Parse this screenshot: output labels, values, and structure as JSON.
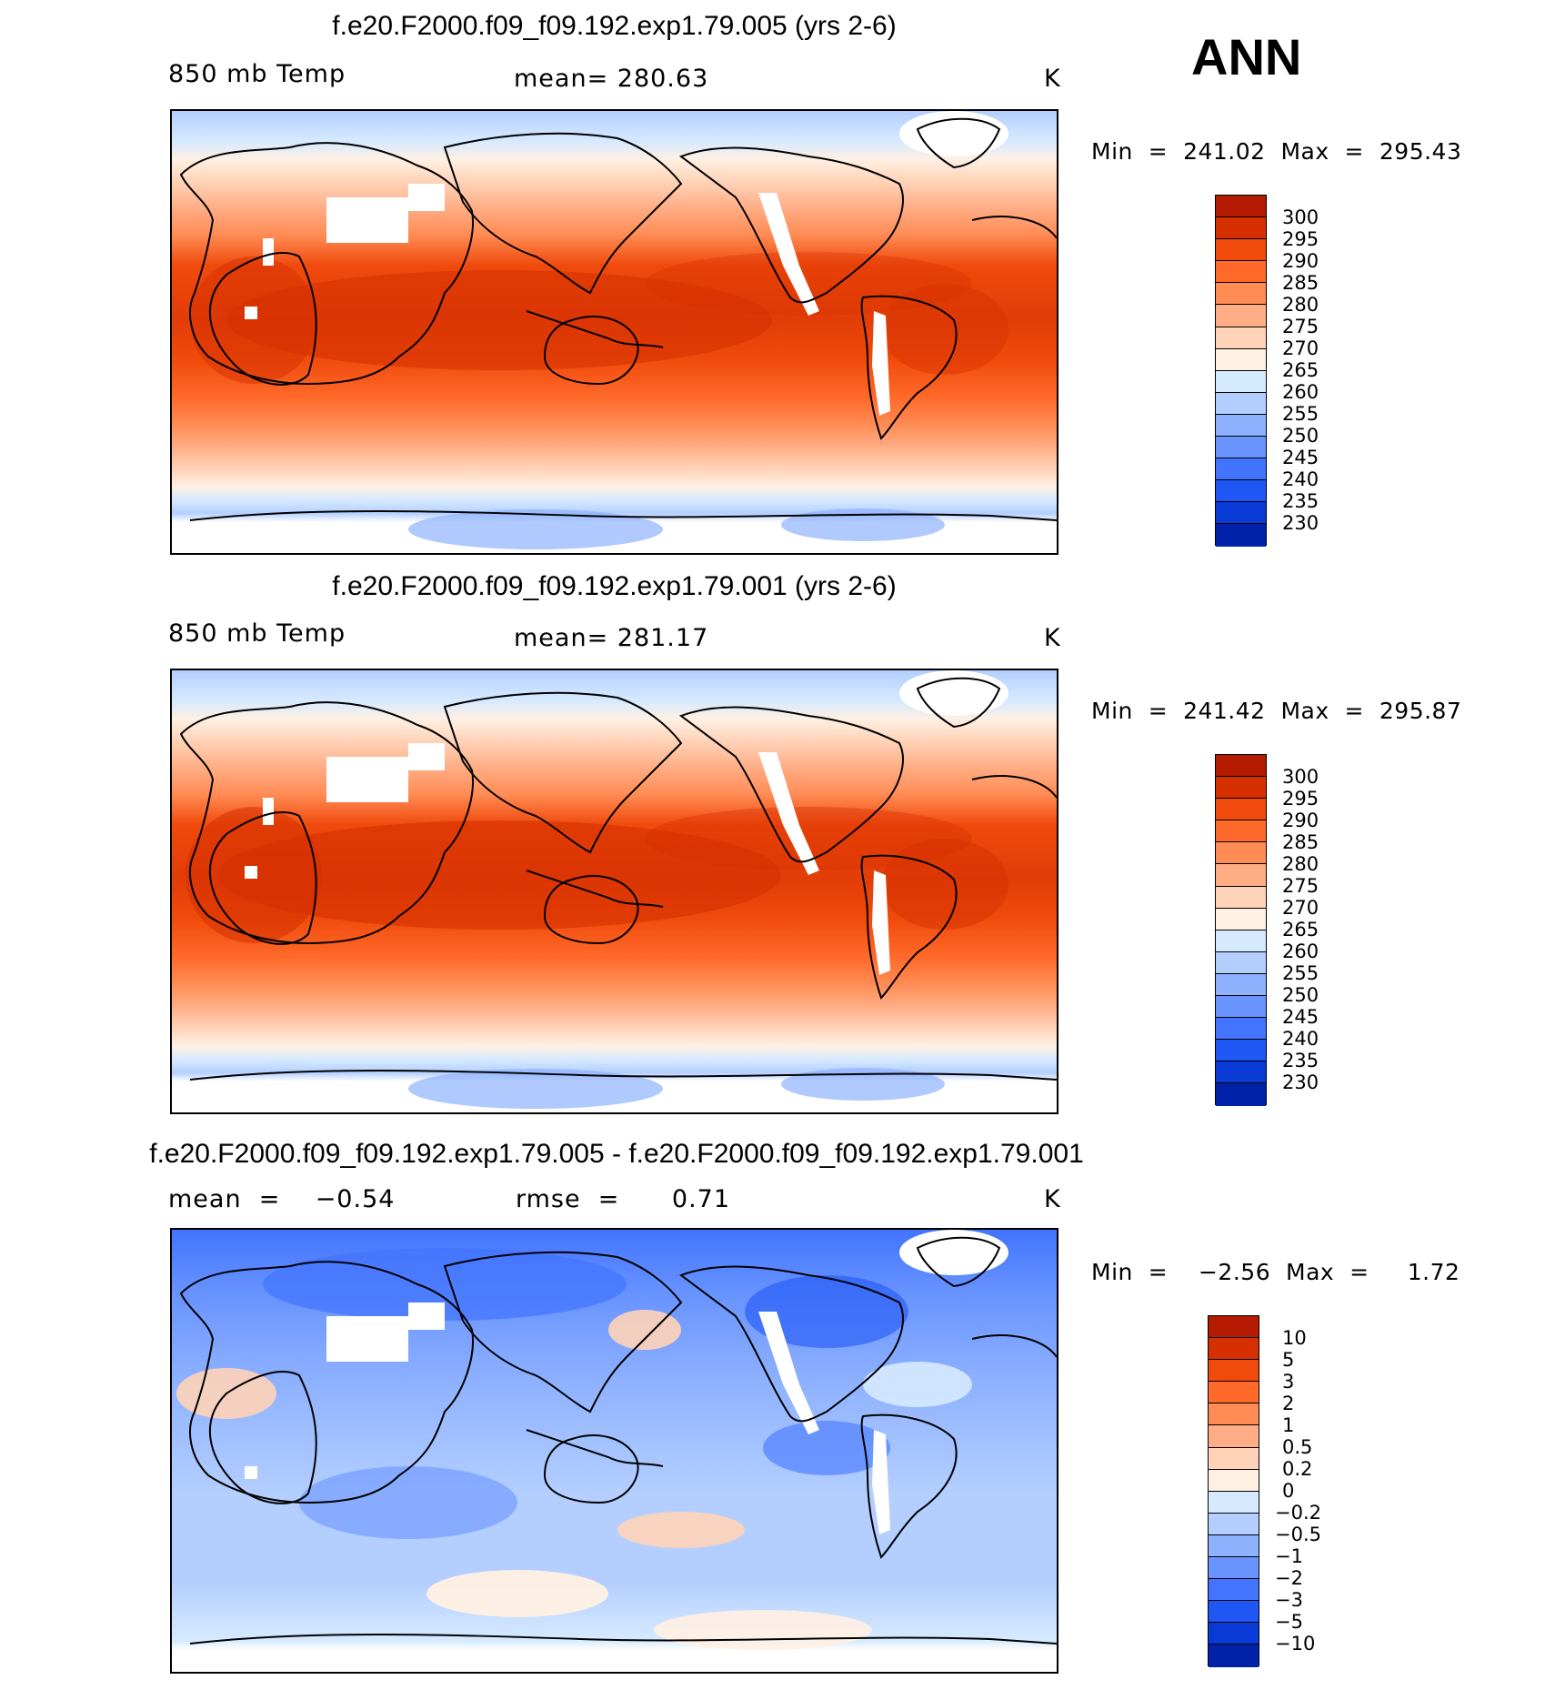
{
  "season": "ANN",
  "panels": [
    {
      "title": "f.e20.F2000.f09_f09.192.exp1.79.005 (yrs 2-6)",
      "left_label": "850 mb Temp",
      "center_label": "mean=  280.63",
      "units": "K",
      "minmax": "Min  =  241.02  Max  =  295.43",
      "type": "field"
    },
    {
      "title": "f.e20.F2000.f09_f09.192.exp1.79.001 (yrs 2-6)",
      "left_label": "850 mb Temp",
      "center_label": "mean=  281.17",
      "units": "K",
      "minmax": "Min  =  241.42  Max  =  295.87",
      "type": "field"
    },
    {
      "title": "f.e20.F2000.f09_f09.192.exp1.79.005 - f.e20.F2000.f09_f09.192.exp1.79.001",
      "left_label": "mean  =    −0.54",
      "center_label": "rmse  =      0.71",
      "units": "K",
      "minmax": "Min  =    −2.56  Max  =     1.72",
      "type": "diff"
    }
  ],
  "colorbars": {
    "field": {
      "labels": [
        "300",
        "295",
        "290",
        "285",
        "280",
        "275",
        "270",
        "265",
        "260",
        "255",
        "250",
        "245",
        "240",
        "235",
        "230"
      ],
      "colors": [
        "#8b0000",
        "#b51b00",
        "#d63000",
        "#f04a0c",
        "#ff6a2a",
        "#ff8c55",
        "#ffad85",
        "#ffd3b8",
        "#fff0e3",
        "#d6eaff",
        "#b4cfff",
        "#8fb2ff",
        "#6994ff",
        "#4274ff",
        "#1f57f5",
        "#0a3ad6",
        "#0022a8",
        "#000c7a"
      ]
    },
    "diff": {
      "labels": [
        "10",
        "5",
        "3",
        "2",
        "1",
        "0.5",
        "0.2",
        "0",
        "−0.2",
        "−0.5",
        "−1",
        "−2",
        "−3",
        "−5",
        "−10"
      ],
      "colors": [
        "#8b0000",
        "#b51b00",
        "#d63000",
        "#f04a0c",
        "#ff6a2a",
        "#ff8c55",
        "#ffad85",
        "#ffd3b8",
        "#fff0e3",
        "#d6eaff",
        "#b4cfff",
        "#8fb2ff",
        "#6994ff",
        "#4274ff",
        "#1f57f5",
        "#0a3ad6",
        "#0022a8",
        "#000c7a"
      ]
    }
  }
}
